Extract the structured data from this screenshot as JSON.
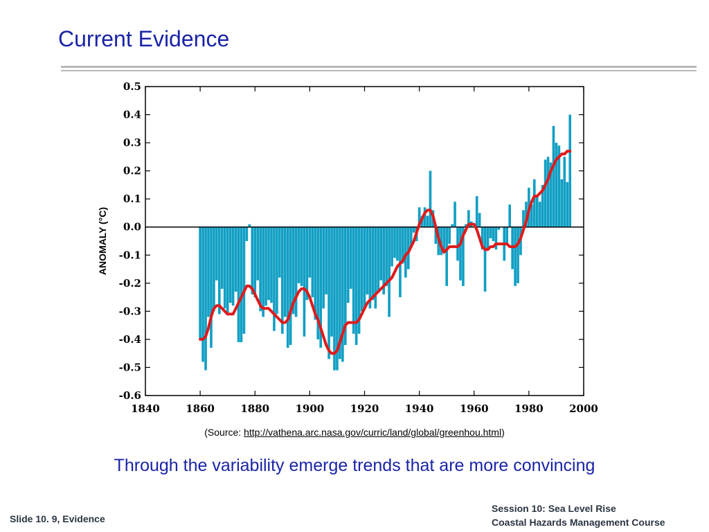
{
  "slide": {
    "title": "Current Evidence",
    "source_prefix": "(Source: ",
    "source_link": "http://vathena.arc.nasa.gov/curric/land/global/greenhou.html",
    "source_suffix": ")",
    "caption": "Through the variability emerge trends that are more convincing",
    "footer_left": "Slide 10. 9, Evidence",
    "footer_right_line1": "Session 10: Sea Level Rise",
    "footer_right_line2": "Coastal Hazards Management Course"
  },
  "chart_data": {
    "type": "bar",
    "title": "",
    "xlabel": "",
    "ylabel": "ANOMALY (°C)",
    "xlim": [
      1840,
      2000
    ],
    "ylim": [
      -0.6,
      0.5
    ],
    "x_ticks": [
      "1840",
      "1860",
      "1880",
      "1900",
      "1920",
      "1940",
      "1960",
      "1980",
      "2000"
    ],
    "y_ticks": [
      "0.5",
      "0.4",
      "0.3",
      "0.2",
      "0.1",
      "0.0",
      "-0.1",
      "-0.2",
      "-0.3",
      "-0.4",
      "-0.5",
      "-0.6"
    ],
    "bar_color": "#119fc4",
    "trend_color": "#e01a1a",
    "series": [
      {
        "type": "bar",
        "years": [
          1860,
          1861,
          1862,
          1863,
          1864,
          1865,
          1866,
          1867,
          1868,
          1869,
          1870,
          1871,
          1872,
          1873,
          1874,
          1875,
          1876,
          1877,
          1878,
          1879,
          1880,
          1881,
          1882,
          1883,
          1884,
          1885,
          1886,
          1887,
          1888,
          1889,
          1890,
          1891,
          1892,
          1893,
          1894,
          1895,
          1896,
          1897,
          1898,
          1899,
          1900,
          1901,
          1902,
          1903,
          1904,
          1905,
          1906,
          1907,
          1908,
          1909,
          1910,
          1911,
          1912,
          1913,
          1914,
          1915,
          1916,
          1917,
          1918,
          1919,
          1920,
          1921,
          1922,
          1923,
          1924,
          1925,
          1926,
          1927,
          1928,
          1929,
          1930,
          1931,
          1932,
          1933,
          1934,
          1935,
          1936,
          1937,
          1938,
          1939,
          1940,
          1941,
          1942,
          1943,
          1944,
          1945,
          1946,
          1947,
          1948,
          1949,
          1950,
          1951,
          1952,
          1953,
          1954,
          1955,
          1956,
          1957,
          1958,
          1959,
          1960,
          1961,
          1962,
          1963,
          1964,
          1965,
          1966,
          1967,
          1968,
          1969,
          1970,
          1971,
          1972,
          1973,
          1974,
          1975,
          1976,
          1977,
          1978,
          1979,
          1980,
          1981,
          1982,
          1983,
          1984,
          1985,
          1986,
          1987,
          1988,
          1989,
          1990,
          1991,
          1992,
          1993,
          1994,
          1995
        ],
        "values": [
          -0.4,
          -0.48,
          -0.51,
          -0.32,
          -0.43,
          -0.3,
          -0.19,
          -0.31,
          -0.22,
          -0.29,
          -0.31,
          -0.27,
          -0.28,
          -0.23,
          -0.41,
          -0.41,
          -0.38,
          -0.05,
          0.01,
          -0.24,
          -0.25,
          -0.19,
          -0.3,
          -0.32,
          -0.28,
          -0.26,
          -0.27,
          -0.37,
          -0.31,
          -0.18,
          -0.38,
          -0.32,
          -0.43,
          -0.42,
          -0.31,
          -0.32,
          -0.2,
          -0.21,
          -0.39,
          -0.26,
          -0.18,
          -0.25,
          -0.33,
          -0.4,
          -0.43,
          -0.29,
          -0.24,
          -0.47,
          -0.39,
          -0.51,
          -0.51,
          -0.47,
          -0.48,
          -0.42,
          -0.27,
          -0.22,
          -0.38,
          -0.42,
          -0.38,
          -0.3,
          -0.29,
          -0.24,
          -0.29,
          -0.26,
          -0.29,
          -0.23,
          -0.19,
          -0.24,
          -0.21,
          -0.32,
          -0.14,
          -0.11,
          -0.12,
          -0.25,
          -0.13,
          -0.18,
          -0.15,
          -0.07,
          -0.02,
          -0.05,
          0.07,
          0.04,
          0.07,
          0.04,
          0.2,
          0.06,
          -0.06,
          -0.1,
          -0.1,
          -0.09,
          -0.21,
          -0.06,
          0.01,
          0.09,
          -0.12,
          -0.19,
          -0.21,
          0.01,
          0.06,
          0.02,
          0.0,
          0.11,
          0.05,
          -0.08,
          -0.23,
          -0.08,
          -0.04,
          -0.05,
          -0.08,
          -0.01,
          0.0,
          -0.12,
          -0.06,
          0.08,
          -0.15,
          -0.21,
          -0.2,
          -0.1,
          0.06,
          0.09,
          0.14,
          0.08,
          0.17,
          0.11,
          0.09,
          0.15,
          0.24,
          0.25,
          0.23,
          0.36,
          0.3,
          0.29,
          0.17,
          0.25,
          0.16,
          0.4
        ]
      },
      {
        "type": "line",
        "name": "",
        "x": [
          1860,
          1861,
          1862,
          1863,
          1864,
          1865,
          1866,
          1867,
          1868,
          1869,
          1870,
          1871,
          1872,
          1873,
          1874,
          1875,
          1876,
          1877,
          1878,
          1879,
          1880,
          1881,
          1882,
          1883,
          1884,
          1885,
          1886,
          1887,
          1888,
          1889,
          1890,
          1891,
          1892,
          1893,
          1894,
          1895,
          1896,
          1897,
          1898,
          1899,
          1900,
          1901,
          1902,
          1903,
          1904,
          1905,
          1906,
          1907,
          1908,
          1909,
          1910,
          1911,
          1912,
          1913,
          1914,
          1915,
          1916,
          1917,
          1918,
          1919,
          1920,
          1921,
          1922,
          1923,
          1924,
          1925,
          1926,
          1927,
          1928,
          1929,
          1930,
          1931,
          1932,
          1933,
          1934,
          1935,
          1936,
          1937,
          1938,
          1939,
          1940,
          1941,
          1942,
          1943,
          1944,
          1945,
          1946,
          1947,
          1948,
          1949,
          1950,
          1951,
          1952,
          1953,
          1954,
          1955,
          1956,
          1957,
          1958,
          1959,
          1960,
          1961,
          1962,
          1963,
          1964,
          1965,
          1966,
          1967,
          1968,
          1969,
          1970,
          1971,
          1972,
          1973,
          1974,
          1975,
          1976,
          1977,
          1978,
          1979,
          1980,
          1981,
          1982,
          1983,
          1984,
          1985,
          1986,
          1987,
          1988,
          1989,
          1990,
          1991,
          1992,
          1993,
          1994,
          1995
        ],
        "y": [
          -0.4,
          -0.4,
          -0.39,
          -0.36,
          -0.32,
          -0.29,
          -0.28,
          -0.28,
          -0.29,
          -0.3,
          -0.31,
          -0.31,
          -0.31,
          -0.29,
          -0.27,
          -0.25,
          -0.23,
          -0.21,
          -0.21,
          -0.22,
          -0.24,
          -0.26,
          -0.28,
          -0.29,
          -0.29,
          -0.29,
          -0.3,
          -0.31,
          -0.32,
          -0.33,
          -0.34,
          -0.34,
          -0.33,
          -0.3,
          -0.27,
          -0.25,
          -0.23,
          -0.22,
          -0.22,
          -0.23,
          -0.25,
          -0.28,
          -0.31,
          -0.33,
          -0.36,
          -0.39,
          -0.42,
          -0.44,
          -0.45,
          -0.45,
          -0.44,
          -0.41,
          -0.38,
          -0.35,
          -0.34,
          -0.34,
          -0.34,
          -0.34,
          -0.33,
          -0.31,
          -0.29,
          -0.27,
          -0.26,
          -0.25,
          -0.24,
          -0.23,
          -0.22,
          -0.21,
          -0.2,
          -0.19,
          -0.18,
          -0.16,
          -0.14,
          -0.13,
          -0.12,
          -0.1,
          -0.09,
          -0.07,
          -0.05,
          -0.02,
          0.01,
          0.03,
          0.05,
          0.06,
          0.06,
          0.04,
          0.0,
          -0.04,
          -0.07,
          -0.09,
          -0.08,
          -0.07,
          -0.07,
          -0.07,
          -0.07,
          -0.06,
          -0.03,
          -0.01,
          0.01,
          0.01,
          0.01,
          -0.01,
          -0.04,
          -0.07,
          -0.08,
          -0.08,
          -0.07,
          -0.07,
          -0.06,
          -0.06,
          -0.06,
          -0.06,
          -0.06,
          -0.07,
          -0.07,
          -0.07,
          -0.06,
          -0.04,
          -0.01,
          0.02,
          0.06,
          0.09,
          0.11,
          0.11,
          0.12,
          0.13,
          0.15,
          0.17,
          0.2,
          0.22,
          0.24,
          0.25,
          0.26,
          0.26,
          0.27,
          0.27
        ]
      }
    ],
    "grid": false,
    "legend": "none"
  }
}
